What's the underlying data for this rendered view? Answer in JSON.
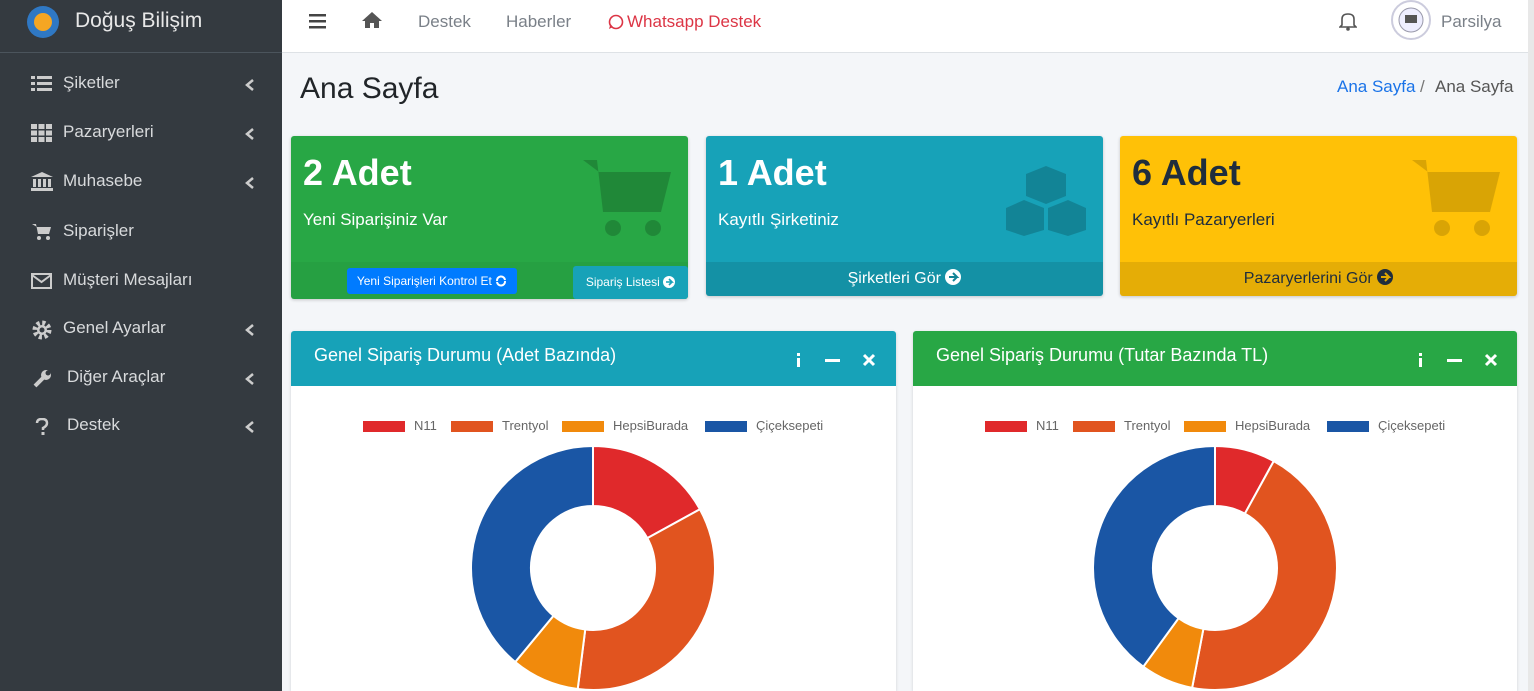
{
  "brand": "Doğuş Bilişim",
  "menu": [
    "Şiketler",
    "Pazaryerleri",
    "Muhasebe",
    "Siparişler",
    "Müşteri Mesajları",
    "Genel Ayarlar",
    "Diğer Araçlar",
    "Destek"
  ],
  "navbar": {
    "links": [
      "Destek",
      "Haberler",
      "Whatsapp Destek"
    ],
    "user": "Parsilya"
  },
  "page_title": "Ana Sayfa",
  "breadcrumb": [
    "Ana Sayfa",
    "Ana Sayfa"
  ],
  "boxes": [
    {
      "count": "2 Adet",
      "text": "Yeni Siparişiniz Var",
      "links": [
        "Yeni Siparişleri Kontrol Et",
        "Sipariş Listesi"
      ]
    },
    {
      "count": "1 Adet",
      "text": "Kayıtlı Şirketiniz",
      "links": [
        "Şirketleri Gör"
      ]
    },
    {
      "count": "6 Adet",
      "text": "Kayıtlı Pazaryerleri",
      "links": [
        "Pazaryerlerini Gör"
      ]
    }
  ],
  "chart_data": [
    {
      "type": "doughnut",
      "title": "Genel Sipariş Durumu (Adet Bazında)",
      "categories": [
        "N11",
        "Trentyol",
        "HepsiBurada",
        "Çiçeksepeti"
      ],
      "values": [
        17,
        35,
        9,
        39
      ],
      "colors": [
        "#e0292b",
        "#e1541f",
        "#f18a0c",
        "#1a56a5"
      ]
    },
    {
      "type": "doughnut",
      "title": "Genel Sipariş Durumu (Tutar Bazında TL)",
      "categories": [
        "N11",
        "Trentyol",
        "HepsiBurada",
        "Çiçeksepeti"
      ],
      "values": [
        8,
        45,
        7,
        40
      ],
      "colors": [
        "#e0292b",
        "#e1541f",
        "#f18a0c",
        "#1a56a5"
      ]
    }
  ]
}
